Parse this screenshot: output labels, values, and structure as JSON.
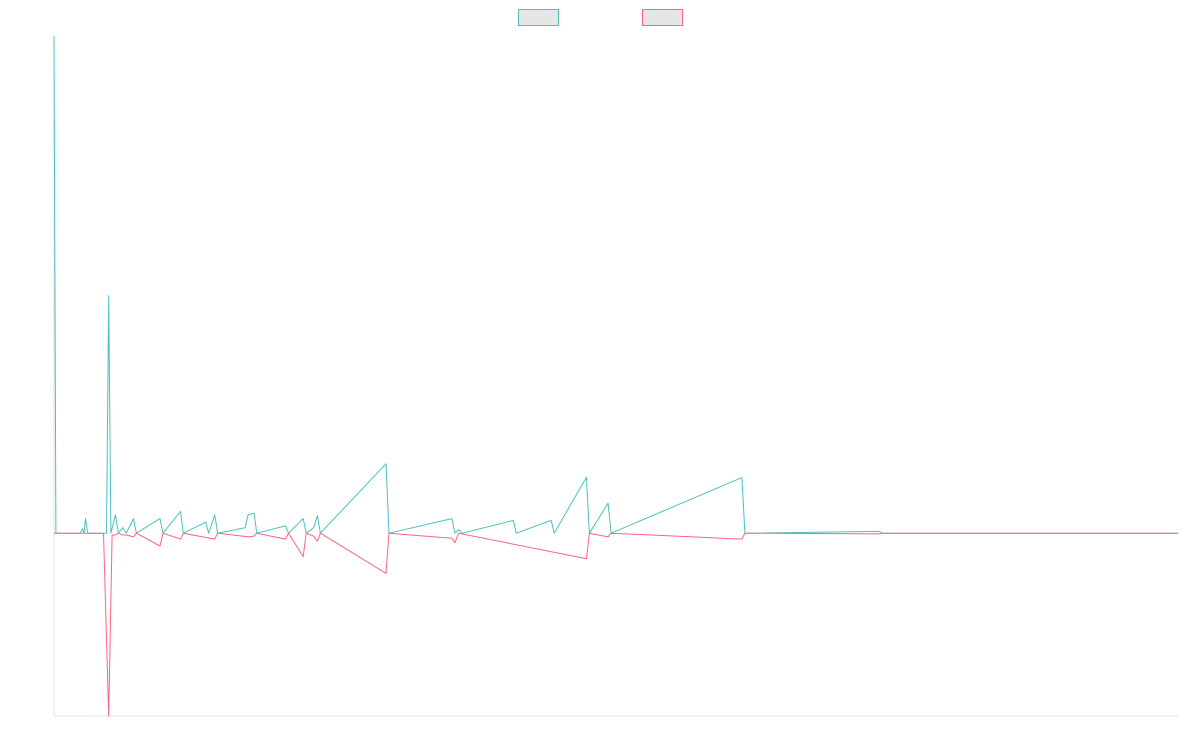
{
  "chart_data": {
    "type": "line",
    "title": "",
    "xlabel": "",
    "ylabel": "",
    "xlim": [
      0,
      300
    ],
    "ylim": [
      -50,
      136
    ],
    "grid": false,
    "legend_position": "top-center",
    "series": [
      {
        "color": "#4bc0c0",
        "fill": "#e6e6e6",
        "points": [
          [
            0,
            136
          ],
          [
            0.5,
            0
          ],
          [
            7,
            0
          ],
          [
            7.6,
            1.2
          ],
          [
            8,
            0
          ],
          [
            8.4,
            4
          ],
          [
            9,
            0
          ],
          [
            14,
            0
          ],
          [
            14.6,
            65
          ],
          [
            15.2,
            0
          ],
          [
            16.4,
            5
          ],
          [
            17.2,
            0
          ],
          [
            18.3,
            1.5
          ],
          [
            19.3,
            0
          ],
          [
            21.2,
            4
          ],
          [
            22,
            0
          ],
          [
            28.3,
            4
          ],
          [
            29.1,
            0
          ],
          [
            33.8,
            6
          ],
          [
            34.5,
            0
          ],
          [
            40.5,
            3
          ],
          [
            41.3,
            0
          ],
          [
            42.9,
            5
          ],
          [
            43.7,
            0
          ],
          [
            51,
            1.5
          ],
          [
            51.8,
            5
          ],
          [
            53.4,
            5.5
          ],
          [
            54.1,
            0
          ],
          [
            61.8,
            2
          ],
          [
            62.6,
            0
          ],
          [
            66.5,
            4
          ],
          [
            67.3,
            0
          ],
          [
            69.3,
            1.5
          ],
          [
            70.3,
            4.8
          ],
          [
            71.1,
            0
          ],
          [
            88.6,
            19
          ],
          [
            89.4,
            0
          ],
          [
            106.2,
            4
          ],
          [
            107,
            0
          ],
          [
            108,
            1
          ],
          [
            109,
            0
          ],
          [
            122.6,
            3.5
          ],
          [
            123.4,
            0
          ],
          [
            132.7,
            3.5
          ],
          [
            133.5,
            0
          ],
          [
            142.1,
            15.3
          ],
          [
            142.9,
            0
          ],
          [
            147.9,
            8.2
          ],
          [
            148.7,
            0
          ],
          [
            183.6,
            15.2
          ],
          [
            184.4,
            0
          ],
          [
            220.2,
            0.5
          ],
          [
            221,
            0
          ],
          [
            300,
            0
          ]
        ]
      },
      {
        "color": "#ff6384",
        "fill": "#e6e6e6",
        "points": [
          [
            0,
            0
          ],
          [
            13.2,
            0
          ],
          [
            14.6,
            -50
          ],
          [
            15.5,
            -0.5
          ],
          [
            16.4,
            -0.5
          ],
          [
            17.2,
            0
          ],
          [
            18.3,
            -0.5
          ],
          [
            19.3,
            -0.5
          ],
          [
            21.2,
            -1
          ],
          [
            22,
            0
          ],
          [
            28.3,
            -3.5
          ],
          [
            29.1,
            0
          ],
          [
            33.8,
            -1.6
          ],
          [
            34.5,
            0
          ],
          [
            42.9,
            -1.6
          ],
          [
            43.7,
            0
          ],
          [
            52,
            -1
          ],
          [
            53.4,
            -0.8
          ],
          [
            54.1,
            0
          ],
          [
            61.8,
            -1.6
          ],
          [
            62.6,
            0
          ],
          [
            66.5,
            -6.4
          ],
          [
            67.3,
            0
          ],
          [
            69.3,
            -0.8
          ],
          [
            70.3,
            -2.2
          ],
          [
            71.1,
            0
          ],
          [
            88.6,
            -11
          ],
          [
            89.4,
            0
          ],
          [
            106.2,
            -1.4
          ],
          [
            107,
            -2.6
          ],
          [
            108,
            0
          ],
          [
            142.1,
            -7
          ],
          [
            142.9,
            0
          ],
          [
            147.9,
            -1
          ],
          [
            148.7,
            0
          ],
          [
            183.6,
            -1.6
          ],
          [
            184.4,
            0
          ],
          [
            220.2,
            -0.2
          ],
          [
            221,
            0
          ],
          [
            300,
            0
          ]
        ]
      }
    ]
  }
}
